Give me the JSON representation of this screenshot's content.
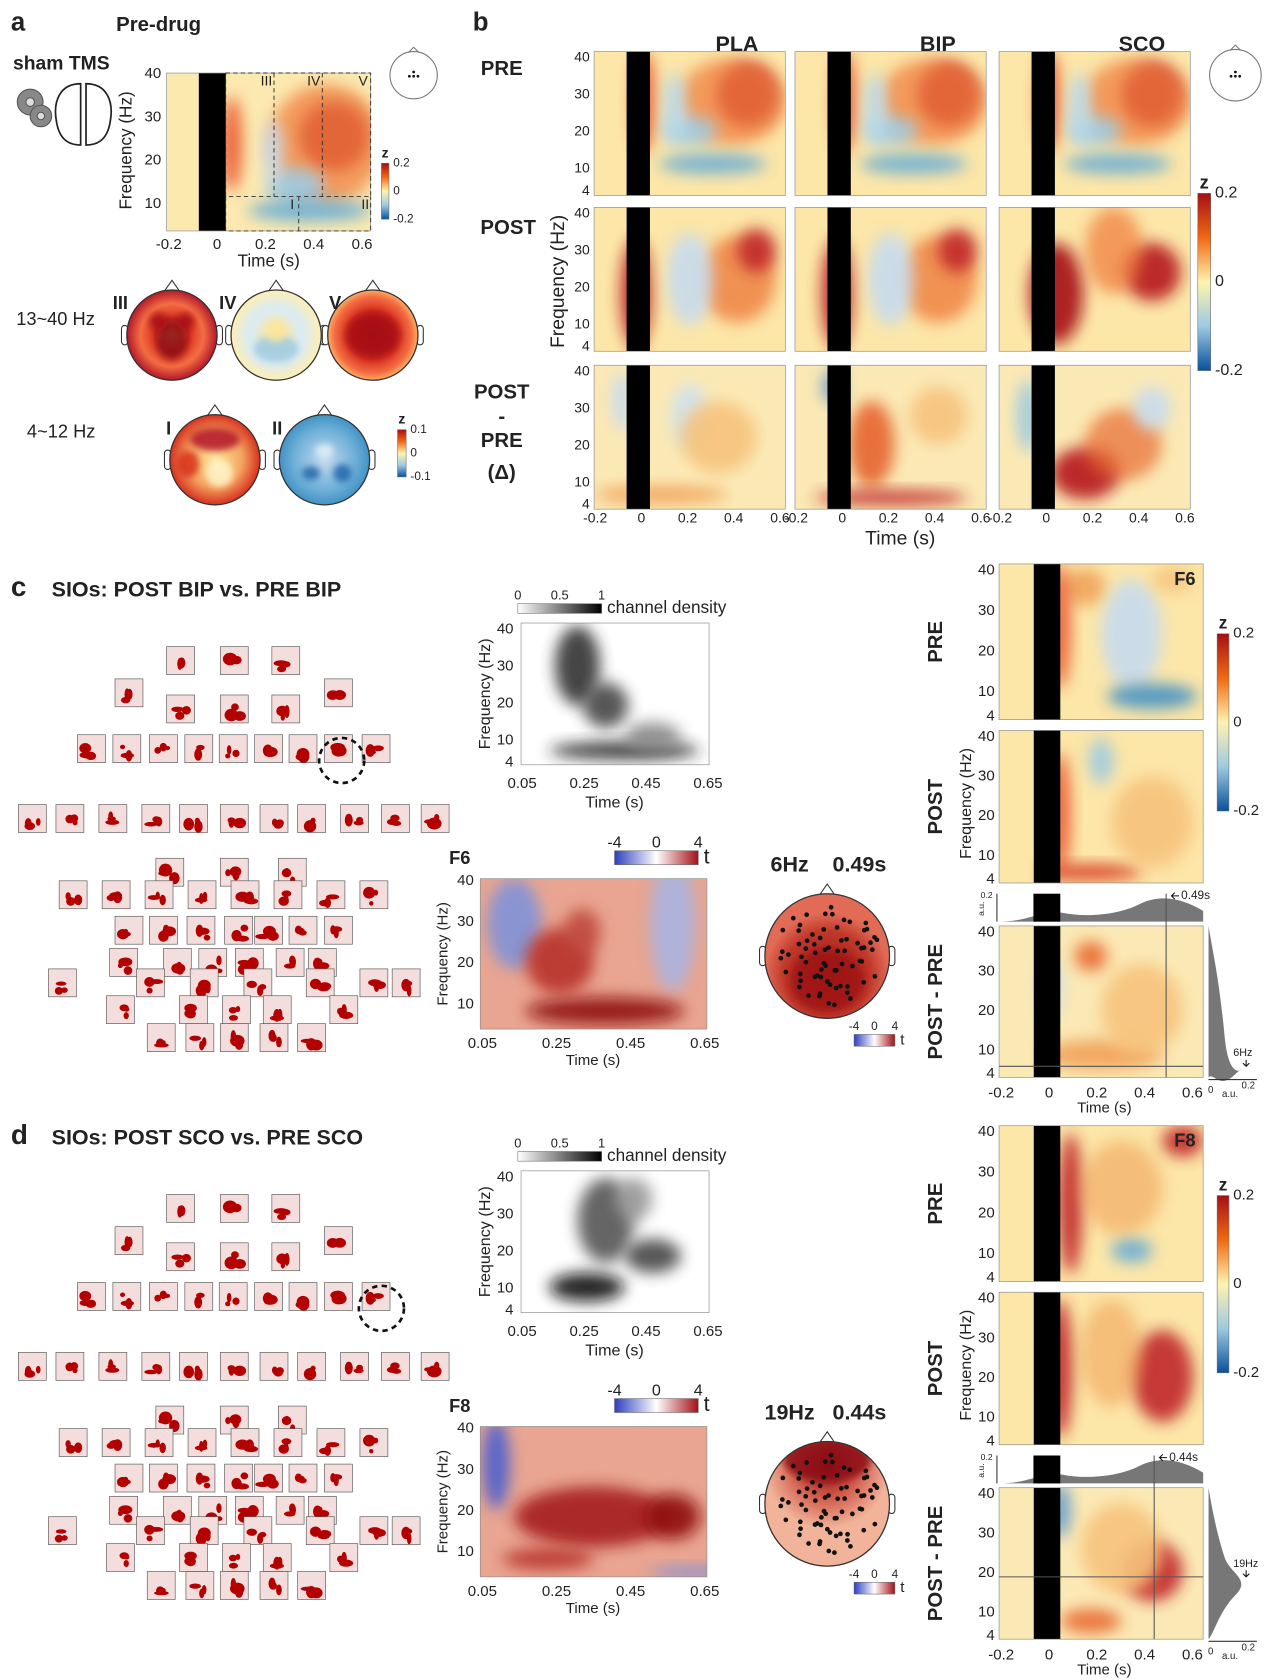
{
  "a": {
    "label": "a",
    "title": "Pre-drug",
    "condition": "sham TMS",
    "x_label": "Time (s)",
    "y_label": "Frequency (Hz)",
    "x_ticks": [
      "-0.2",
      "0",
      "0.2",
      "0.4",
      "0.6"
    ],
    "y_ticks": [
      "10",
      "20",
      "30",
      "40"
    ],
    "windows": [
      "III",
      "IV",
      "V",
      "I",
      "II"
    ],
    "colorbar": {
      "label": "z",
      "ticks": [
        "0.2",
        "0",
        "-0.2"
      ]
    },
    "bands": [
      {
        "name": "13~40 Hz",
        "maps": [
          "III",
          "IV",
          "V"
        ]
      },
      {
        "name": "4~12 Hz",
        "maps": [
          "I",
          "II"
        ]
      }
    ],
    "topo_colorbar": {
      "label": "z",
      "ticks": [
        "0.1",
        "0",
        "-0.1"
      ]
    }
  },
  "b": {
    "label": "b",
    "columns": [
      "PLA",
      "BIP",
      "SCO"
    ],
    "rows": [
      "PRE",
      "POST"
    ],
    "delta_row": [
      "POST",
      "-",
      "PRE",
      "(Δ)"
    ],
    "x_label": "Time (s)",
    "y_label": "Frequency (Hz)",
    "x_ticks": [
      "-0.2",
      "0",
      "0.2",
      "0.4",
      "0.6"
    ],
    "y_ticks": [
      "4",
      "10",
      "20",
      "30",
      "40"
    ],
    "colorbar": {
      "label": "z",
      "ticks": [
        "0.2",
        "0",
        "-0.2"
      ]
    }
  },
  "c": {
    "label": "c",
    "title": "SIOs: POST BIP vs. PRE BIP",
    "density": {
      "colorbar_label": "channel density",
      "colorbar_ticks": [
        "0",
        "0.5",
        "1"
      ],
      "x_label": "Time (s)",
      "y_label": "Frequency (Hz)",
      "x_ticks": [
        "0.05",
        "0.25",
        "0.45",
        "0.65"
      ],
      "y_ticks": [
        "4",
        "10",
        "20",
        "30",
        "40"
      ]
    },
    "tmap": {
      "channel": "F6",
      "colorbar_label": "t",
      "colorbar_ticks": [
        "-4",
        "0",
        "4"
      ],
      "x_label": "Time (s)",
      "y_label": "Frequency (Hz)",
      "x_ticks": [
        "0.05",
        "0.25",
        "0.45",
        "0.65"
      ],
      "y_ticks": [
        "10",
        "20",
        "30",
        "40"
      ]
    },
    "topo": {
      "freq": "6Hz",
      "time": "0.49s",
      "colorbar_label": "t",
      "colorbar_ticks": [
        "-4",
        "0",
        "4"
      ]
    },
    "tf": {
      "channel": "F6",
      "rows": [
        "PRE",
        "POST",
        "POST - PRE"
      ],
      "x_label": "Time (s)",
      "y_label": "Frequency (Hz)",
      "x_ticks": [
        "-0.2",
        "0",
        "0.2",
        "0.4",
        "0.6"
      ],
      "y_ticks": [
        "4",
        "10",
        "20",
        "30",
        "40"
      ],
      "colorbar": {
        "label": "z",
        "ticks": [
          "0.2",
          "0",
          "-0.2"
        ]
      },
      "hist_top": {
        "unit": "a.u.",
        "ticks": [
          "0.2"
        ],
        "marker": "0.49s"
      },
      "hist_side": {
        "unit": "a.u.",
        "ticks": [
          "0",
          "0.2"
        ],
        "marker": "6Hz"
      }
    }
  },
  "d": {
    "label": "d",
    "title": "SIOs: POST SCO vs. PRE SCO",
    "density": {
      "colorbar_label": "channel density",
      "colorbar_ticks": [
        "0",
        "0.5",
        "1"
      ],
      "x_label": "Time (s)",
      "y_label": "Frequency (Hz)",
      "x_ticks": [
        "0.05",
        "0.25",
        "0.45",
        "0.65"
      ],
      "y_ticks": [
        "4",
        "10",
        "20",
        "30",
        "40"
      ]
    },
    "tmap": {
      "channel": "F8",
      "colorbar_label": "t",
      "colorbar_ticks": [
        "-4",
        "0",
        "4"
      ],
      "x_label": "Time (s)",
      "y_label": "Frequency (Hz)",
      "x_ticks": [
        "0.05",
        "0.25",
        "0.45",
        "0.65"
      ],
      "y_ticks": [
        "10",
        "20",
        "30",
        "40"
      ]
    },
    "topo": {
      "freq": "19Hz",
      "time": "0.44s",
      "colorbar_label": "t",
      "colorbar_ticks": [
        "-4",
        "0",
        "4"
      ]
    },
    "tf": {
      "channel": "F8",
      "rows": [
        "PRE",
        "POST",
        "POST - PRE"
      ],
      "x_label": "Time (s)",
      "y_label": "Frequency (Hz)",
      "x_ticks": [
        "-0.2",
        "0",
        "0.2",
        "0.4",
        "0.6"
      ],
      "y_ticks": [
        "4",
        "10",
        "20",
        "30",
        "40"
      ],
      "colorbar": {
        "label": "z",
        "ticks": [
          "0.2",
          "0",
          "-0.2"
        ]
      },
      "hist_top": {
        "unit": "a.u.",
        "ticks": [
          "0.2"
        ],
        "marker": "0.44s"
      },
      "hist_side": {
        "unit": "a.u.",
        "ticks": [
          "0",
          "0.2"
        ],
        "marker": "19Hz"
      }
    }
  }
}
